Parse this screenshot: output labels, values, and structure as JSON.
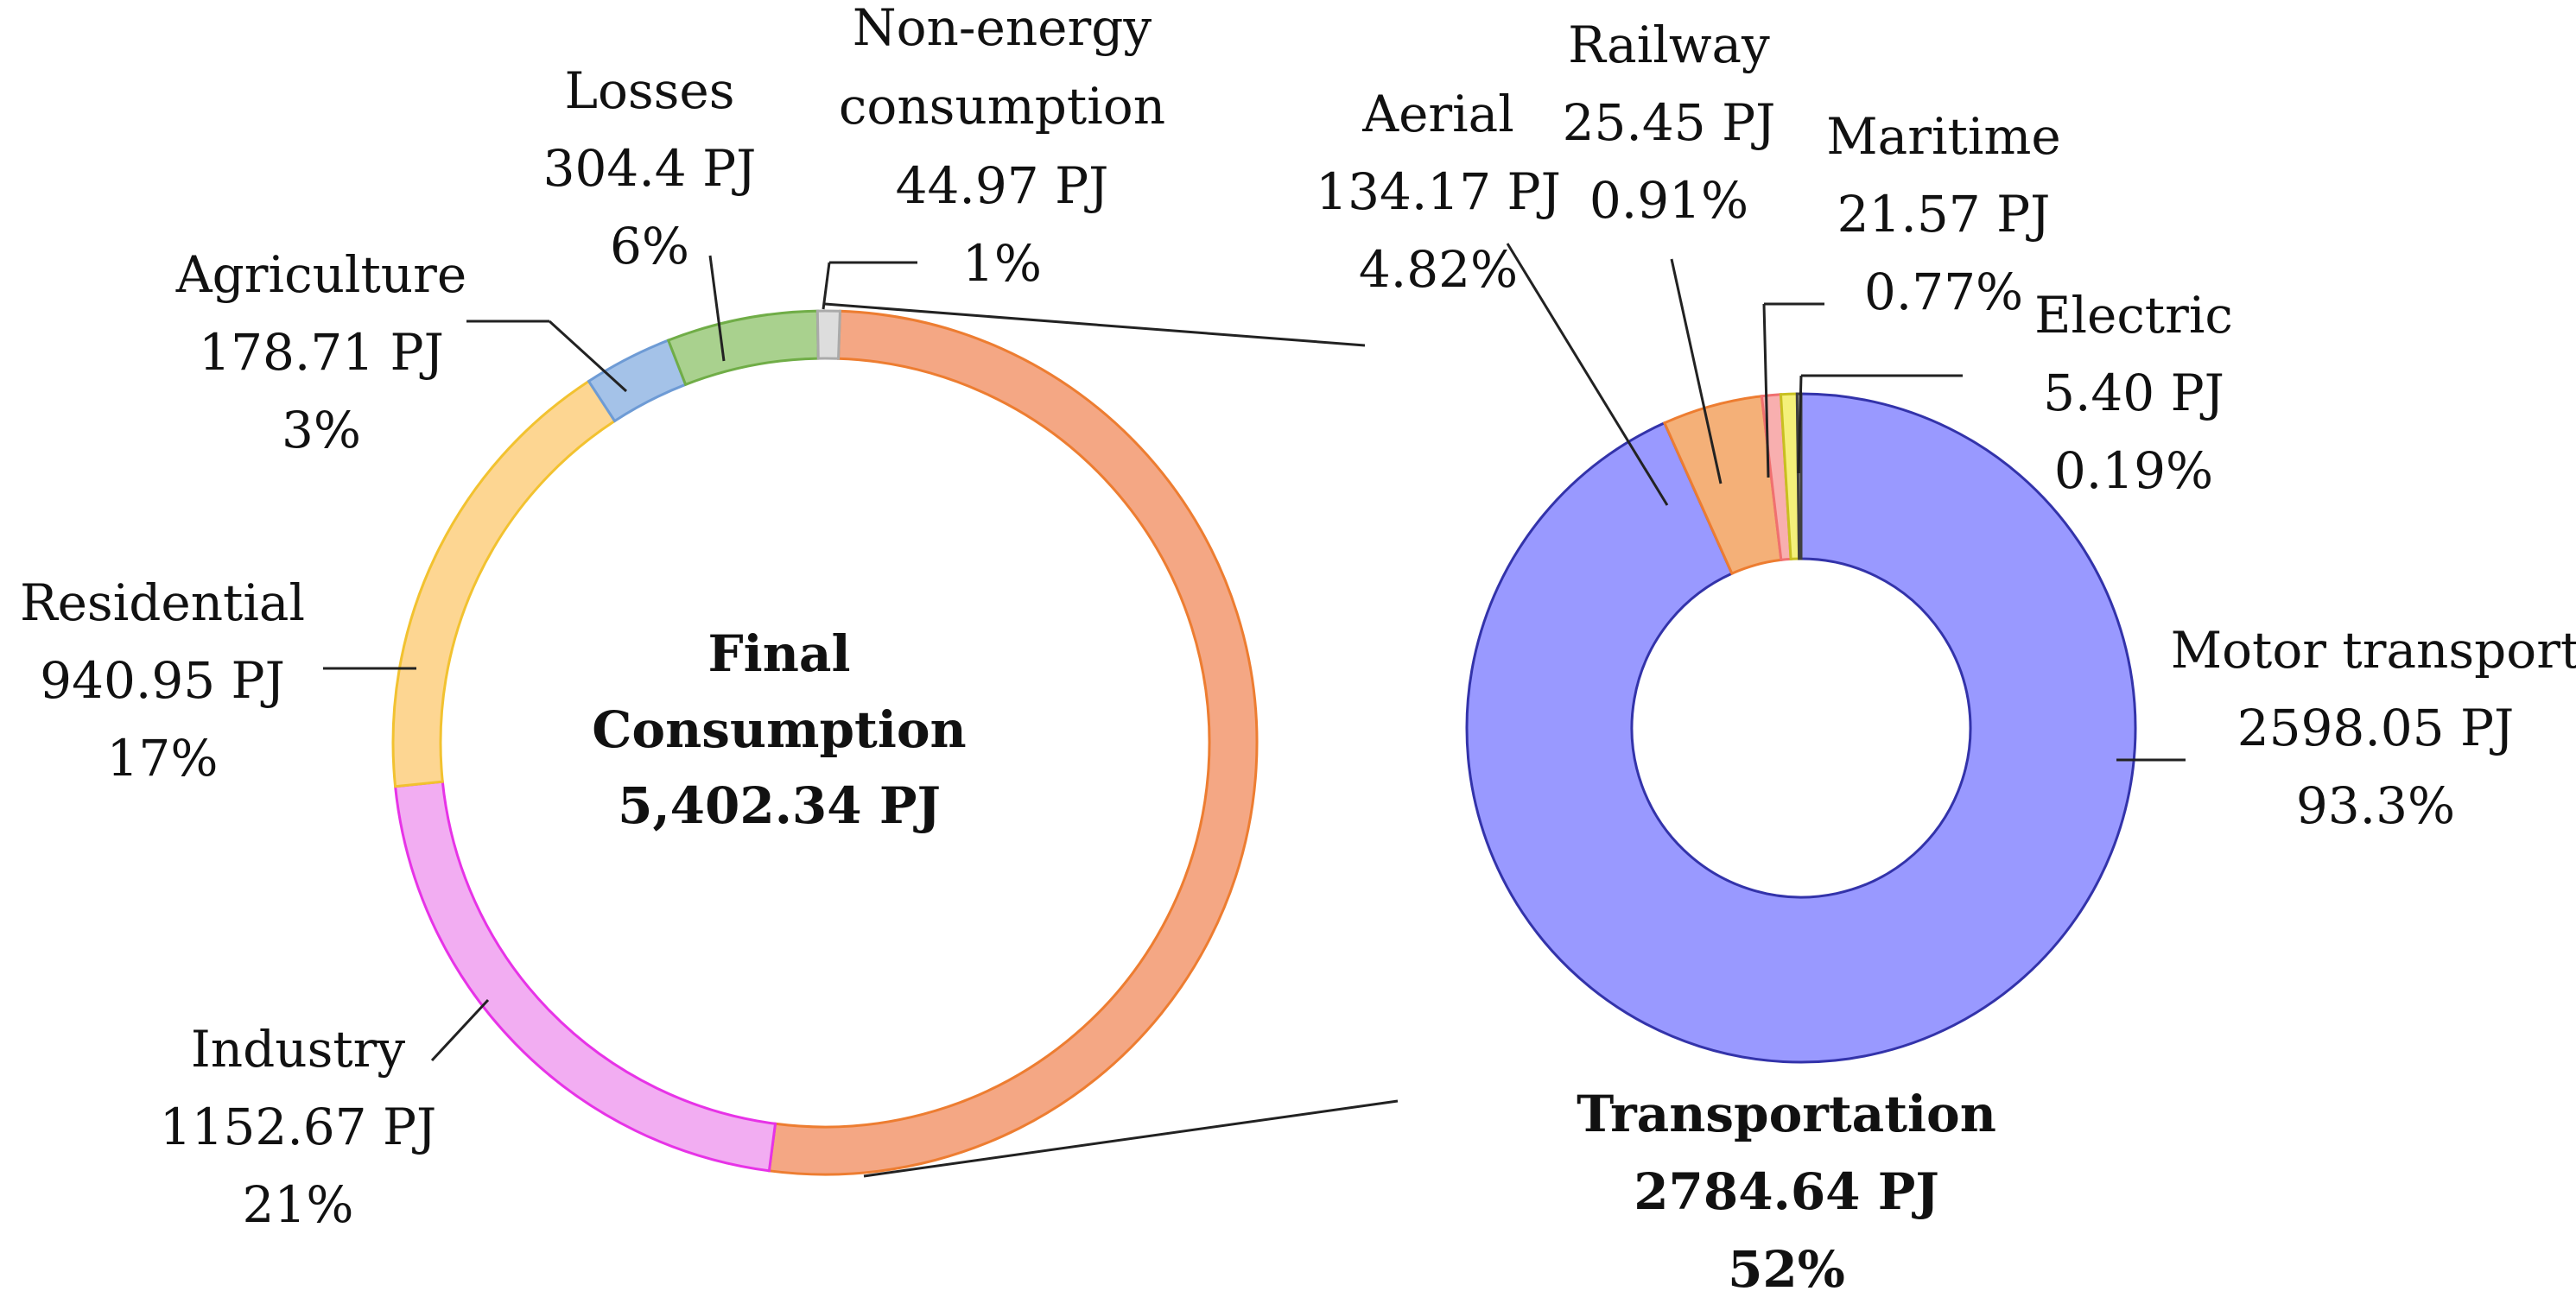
{
  "chart_data": [
    {
      "type": "pie",
      "variant": "donut",
      "title": "Final Consumption",
      "center_label": {
        "line1": "Final",
        "line2": "Consumption",
        "line3": "5,402.34 PJ"
      },
      "total_pj": 5402.34,
      "slices": [
        {
          "name": "Transportation",
          "value": 2784.64,
          "color": "#F4A784",
          "stroke": "#ED7D31",
          "value_label": "",
          "pct_label": ""
        },
        {
          "name": "Industry",
          "value": 1152.67,
          "color": "#F2ADF2",
          "stroke": "#E733E7",
          "value_label": "1152.67 PJ",
          "pct_label": "21%"
        },
        {
          "name": "Residential",
          "value": 940.95,
          "color": "#FDD692",
          "stroke": "#F2C230",
          "value_label": "940.95 PJ",
          "pct_label": "17%"
        },
        {
          "name": "Agriculture",
          "value": 178.71,
          "color": "#A4C2E8",
          "stroke": "#6E9BD5",
          "value_label": "178.71 PJ",
          "pct_label": "3%"
        },
        {
          "name": "Losses",
          "value": 304.4,
          "color": "#A9D18E",
          "stroke": "#70AD47",
          "value_label": "304.4 PJ",
          "pct_label": "6%"
        },
        {
          "name": "Non-energy consumption",
          "name_line1": "Non-energy",
          "name_line2": "consumption",
          "value": 44.97,
          "color": "#DDDDDD",
          "stroke": "#AAAAAA",
          "value_label": "44.97 PJ",
          "pct_label": "1%"
        }
      ]
    },
    {
      "type": "pie",
      "variant": "donut",
      "title": "Transportation",
      "total_label": {
        "line1": "Transportation",
        "line2": "2784.64 PJ",
        "line3": "52%"
      },
      "total_pj": 2784.64,
      "slices": [
        {
          "name": "Motor transport",
          "value": 2598.05,
          "color": "#9999FF",
          "stroke": "#3333AA",
          "value_label": "2598.05 PJ",
          "pct_label": "93.3%"
        },
        {
          "name": "Aerial",
          "value": 134.17,
          "color": "#F4B078",
          "stroke": "#ED7D31",
          "value_label": "134.17 PJ",
          "pct_label": "4.82%"
        },
        {
          "name": "Railway",
          "value": 25.45,
          "color": "#F8AFAF",
          "stroke": "#F07070",
          "value_label": "25.45 PJ",
          "pct_label": "0.91%"
        },
        {
          "name": "Maritime",
          "value": 21.57,
          "color": "#F4F07A",
          "stroke": "#C8C020",
          "value_label": "21.57 PJ",
          "pct_label": "0.77%"
        },
        {
          "name": "Electric",
          "value": 5.4,
          "color": "#A6A6A6",
          "stroke": "#404040",
          "value_label": "5.40 PJ",
          "pct_label": "0.19%"
        }
      ]
    }
  ]
}
